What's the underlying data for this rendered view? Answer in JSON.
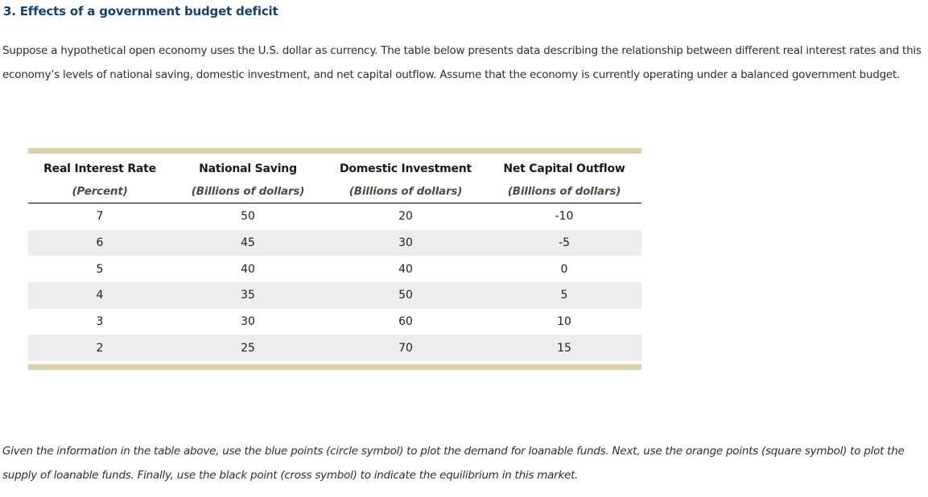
{
  "page": {
    "title": "3. Effects of a government budget deficit",
    "intro": "Suppose a hypothetical open economy uses the U.S. dollar as currency. The table below presents data describing the relationship between different real interest rates and this economy’s levels of national saving, domestic investment, and net capital outflow. Assume that the economy is currently operating under a balanced government budget.",
    "instructions": "Given the information in the table above, use the blue points (circle symbol) to plot the demand for loanable funds. Next, use the orange points (square symbol) to plot the supply of loanable funds. Finally, use the black point (cross symbol) to indicate the equilibrium in this market."
  },
  "table": {
    "columns": [
      {
        "label": "Real Interest Rate",
        "sublabel": "(Percent)"
      },
      {
        "label": "National Saving",
        "sublabel": "(Billions of dollars)"
      },
      {
        "label": "Domestic Investment",
        "sublabel": "(Billions of dollars)"
      },
      {
        "label": "Net Capital Outflow",
        "sublabel": "(Billions of dollars)"
      }
    ],
    "rows": [
      [
        "7",
        "50",
        "20",
        "-10"
      ],
      [
        "6",
        "45",
        "30",
        "-5"
      ],
      [
        "5",
        "40",
        "40",
        "0"
      ],
      [
        "4",
        "35",
        "50",
        "5"
      ],
      [
        "3",
        "30",
        "60",
        "10"
      ],
      [
        "2",
        "25",
        "70",
        "15"
      ]
    ]
  },
  "colors": {
    "title_text": "#17426b",
    "accent_bar": "#d9d1a7",
    "row_stripe": "#ededed",
    "subheader_text": "#4e4e46",
    "body_text": "#2e2e2e"
  }
}
